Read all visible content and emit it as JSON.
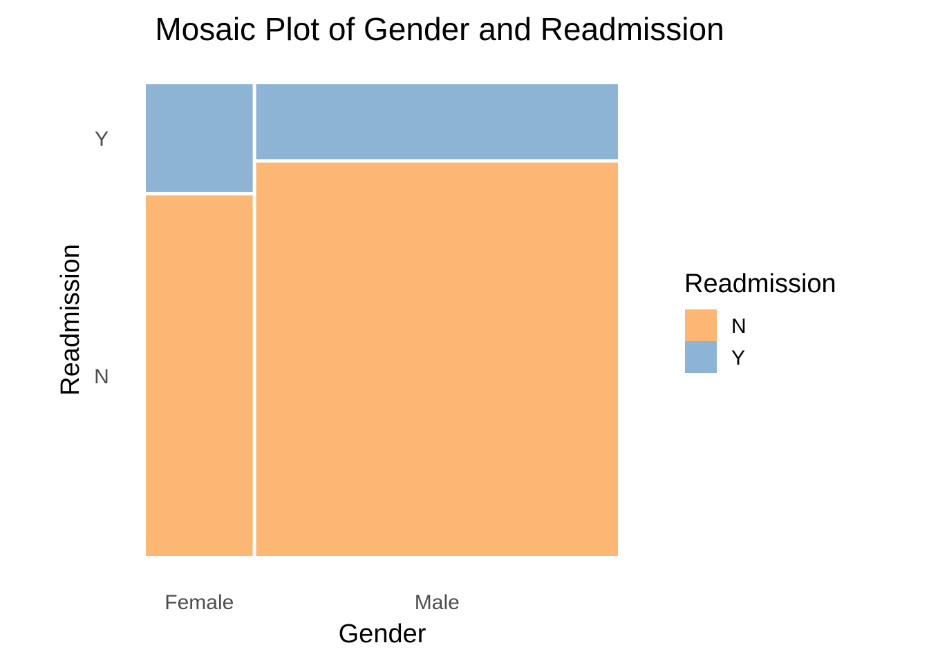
{
  "chart_data": {
    "type": "mosaic",
    "title": "Mosaic Plot of Gender and Readmission",
    "xlabel": "Gender",
    "ylabel": "Readmission",
    "categories": [
      "Female",
      "Male"
    ],
    "column_shares": [
      0.228,
      0.772
    ],
    "y_categories": [
      "N",
      "Y"
    ],
    "series": [
      {
        "name": "N",
        "color": "#fdb774",
        "values": [
          0.77,
          0.84
        ]
      },
      {
        "name": "Y",
        "color": "#8db3d5",
        "values": [
          0.23,
          0.16
        ]
      }
    ],
    "y_tick_labels": [
      "N",
      "Y"
    ],
    "legend": {
      "title": "Readmission",
      "position": "right",
      "entries": [
        "N",
        "Y"
      ]
    },
    "grid": false
  }
}
